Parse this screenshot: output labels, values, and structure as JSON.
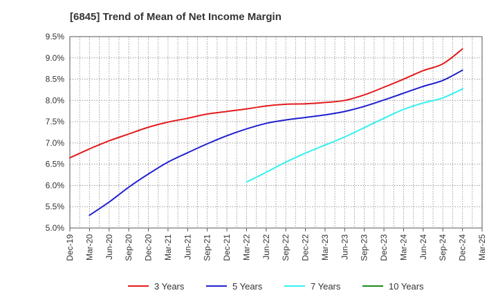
{
  "chart_data": {
    "type": "line",
    "title": "[6845]  Trend of Mean of Net Income Margin",
    "xlabel": "",
    "ylabel": "",
    "x_categories": [
      "Dec-19",
      "Mar-20",
      "Jun-20",
      "Sep-20",
      "Dec-20",
      "Mar-21",
      "Jun-21",
      "Sep-21",
      "Dec-21",
      "Mar-22",
      "Jun-22",
      "Sep-22",
      "Dec-22",
      "Mar-23",
      "Jun-23",
      "Sep-23",
      "Dec-23",
      "Mar-24",
      "Jun-24",
      "Sep-24",
      "Dec-24",
      "Mar-25"
    ],
    "y_ticks": [
      "5.0%",
      "5.5%",
      "6.0%",
      "6.5%",
      "7.0%",
      "7.5%",
      "8.0%",
      "8.5%",
      "9.0%",
      "9.5%"
    ],
    "ylim": [
      5.0,
      9.5
    ],
    "y_unit": "%",
    "grid": true,
    "grid_style": "dotted",
    "legend_position": "bottom",
    "series": [
      {
        "name": "3 Years",
        "color": "#e31a1c",
        "values": [
          6.65,
          6.86,
          7.05,
          7.21,
          7.37,
          7.49,
          7.58,
          7.68,
          7.74,
          7.8,
          7.87,
          7.91,
          7.92,
          7.95,
          8.0,
          8.13,
          8.31,
          8.5,
          8.7,
          8.86,
          9.21,
          null
        ]
      },
      {
        "name": "5 Years",
        "color": "#1f1fcf",
        "values": [
          null,
          5.3,
          5.61,
          5.96,
          6.27,
          6.55,
          6.77,
          6.98,
          7.17,
          7.33,
          7.46,
          7.54,
          7.6,
          7.66,
          7.74,
          7.86,
          8.01,
          8.17,
          8.33,
          8.47,
          8.71,
          null
        ]
      },
      {
        "name": "7 Years",
        "color": "#33f0f0",
        "values": [
          null,
          null,
          null,
          null,
          null,
          null,
          null,
          null,
          null,
          6.08,
          6.31,
          6.55,
          6.76,
          6.95,
          7.14,
          7.36,
          7.58,
          7.79,
          7.94,
          8.06,
          8.27,
          null
        ]
      },
      {
        "name": "10 Years",
        "color": "#1a8a1a",
        "values": [
          null,
          null,
          null,
          null,
          null,
          null,
          null,
          null,
          null,
          null,
          null,
          null,
          null,
          null,
          null,
          null,
          null,
          null,
          null,
          null,
          null,
          null
        ]
      }
    ]
  }
}
